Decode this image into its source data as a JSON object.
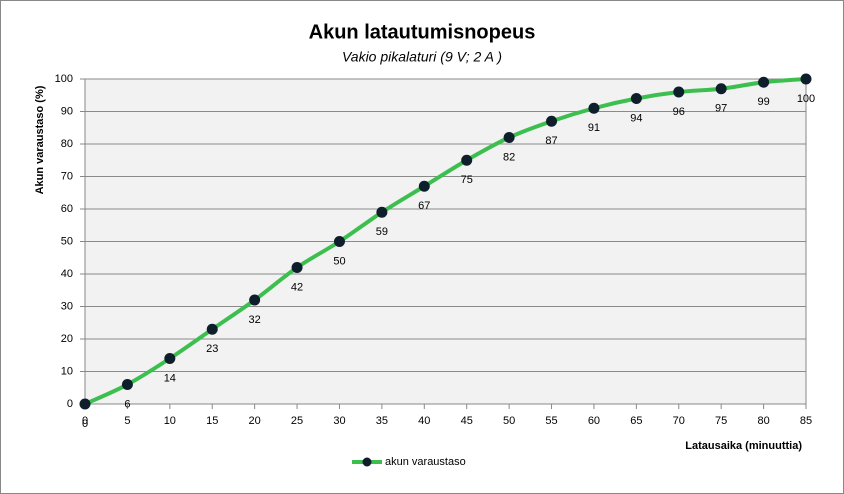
{
  "chart_data": {
    "type": "line",
    "title": "Akun latautumisnopeus",
    "subtitle": "Vakio pikalaturi (9 V; 2 A )",
    "x_label": "Latausaika  (minuuttia)",
    "y_label": "Akun varaustaso  (%)",
    "x": [
      0,
      5,
      10,
      15,
      20,
      25,
      30,
      35,
      40,
      45,
      50,
      55,
      60,
      65,
      70,
      75,
      80,
      85
    ],
    "series": [
      {
        "name": "akun varaustaso",
        "color": "#3cbf4f",
        "marker_color": "#0e1e2b",
        "values": [
          0,
          6,
          14,
          23,
          32,
          42,
          50,
          59,
          67,
          75,
          82,
          87,
          91,
          94,
          96,
          97,
          99,
          100
        ]
      }
    ],
    "xlim": [
      0,
      85
    ],
    "xticks": [
      0,
      5,
      10,
      15,
      20,
      25,
      30,
      35,
      40,
      45,
      50,
      55,
      60,
      65,
      70,
      75,
      80,
      85
    ],
    "ylim": [
      0,
      100
    ],
    "yticks": [
      0,
      10,
      20,
      30,
      40,
      50,
      60,
      70,
      80,
      90,
      100
    ],
    "grid": true,
    "legend": "bottom"
  }
}
